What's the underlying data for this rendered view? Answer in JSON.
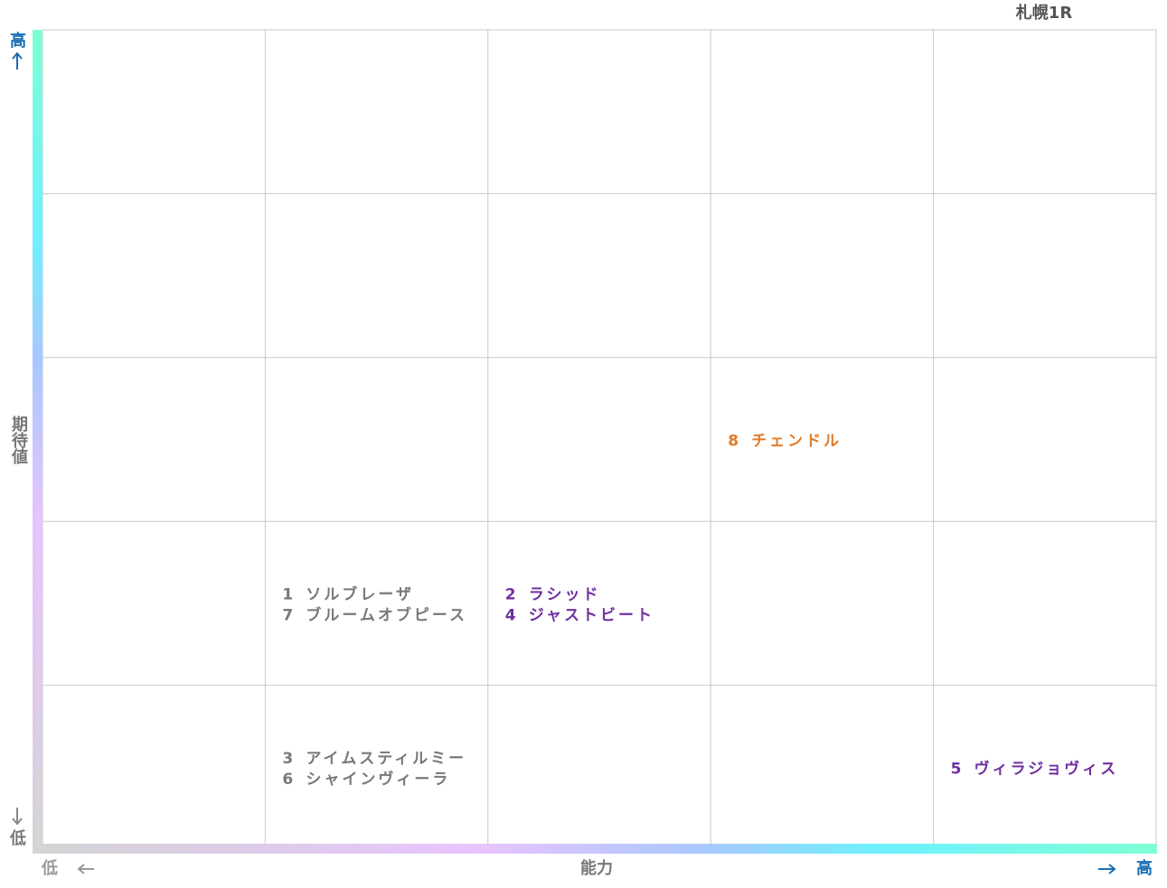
{
  "title": "札幌1R",
  "y_axis": {
    "label": "期待値",
    "high": "高",
    "low": "低"
  },
  "x_axis": {
    "label": "能力",
    "high": "高",
    "low": "低"
  },
  "columns": 5,
  "rows": 5,
  "cells": [
    {
      "col": 1,
      "row": 3,
      "color": "#787878",
      "entries": [
        {
          "number": 1,
          "name": "ソルブレーザ"
        },
        {
          "number": 7,
          "name": "ブルームオブピース"
        }
      ]
    },
    {
      "col": 2,
      "row": 3,
      "color": "#7030a0",
      "entries": [
        {
          "number": 2,
          "name": "ラシッド"
        },
        {
          "number": 4,
          "name": "ジャストビート"
        }
      ]
    },
    {
      "col": 3,
      "row": 2,
      "color": "#e07b28",
      "entries": [
        {
          "number": 8,
          "name": "チェンドル"
        }
      ]
    },
    {
      "col": 1,
      "row": 4,
      "color": "#787878",
      "entries": [
        {
          "number": 3,
          "name": "アイムスティルミー"
        },
        {
          "number": 6,
          "name": "シャインヴィーラ"
        }
      ]
    },
    {
      "col": 4,
      "row": 4,
      "color": "#7030a0",
      "entries": [
        {
          "number": 5,
          "name": "ヴィラジョヴィス"
        }
      ]
    }
  ]
}
